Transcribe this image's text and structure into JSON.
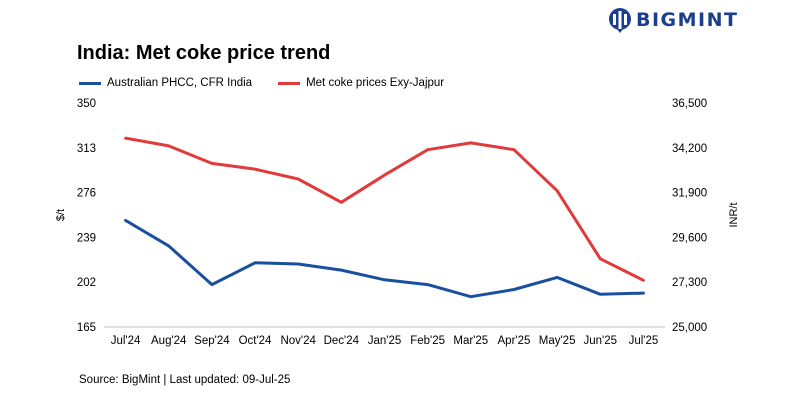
{
  "brand": {
    "name": "BIGMINT",
    "icon": "bigmint-logo-icon",
    "color": "#1b3f8f"
  },
  "chart_data": {
    "type": "line",
    "title": "India: Met coke price trend",
    "categories": [
      "Jul'24",
      "Aug'24",
      "Sep'24",
      "Oct'24",
      "Nov'24",
      "Dec'24",
      "Jan'25",
      "Feb'25",
      "Mar'25",
      "Apr'25",
      "May'25",
      "Jun'25",
      "Jul'25"
    ],
    "series": [
      {
        "name": "Australian PHCC, CFR India",
        "axis": "left",
        "color": "#1a4fa0",
        "values": [
          253,
          232,
          200,
          218,
          217,
          212,
          204,
          200,
          190,
          196,
          206,
          192,
          193
        ]
      },
      {
        "name": "Met coke prices Exy-Jajpur",
        "axis": "right",
        "color": "#e03a3a",
        "values": [
          34700,
          34300,
          33400,
          33100,
          32600,
          31400,
          32800,
          34100,
          34450,
          34100,
          32000,
          28500,
          27400
        ]
      }
    ],
    "ylabel": "$/t",
    "ylabel_right": "INR/t",
    "ylim": [
      165,
      350
    ],
    "ylim_right": [
      25000,
      36500
    ],
    "yticks": [
      "165",
      "202",
      "239",
      "276",
      "313",
      "350"
    ],
    "yticks_right": [
      "25,000",
      "27,300",
      "29,600",
      "31,900",
      "34,200",
      "36,500"
    ],
    "grid": false,
    "legend_position": "top-left"
  },
  "source": "Source: BigMint | Last updated: 09-Jul-25"
}
